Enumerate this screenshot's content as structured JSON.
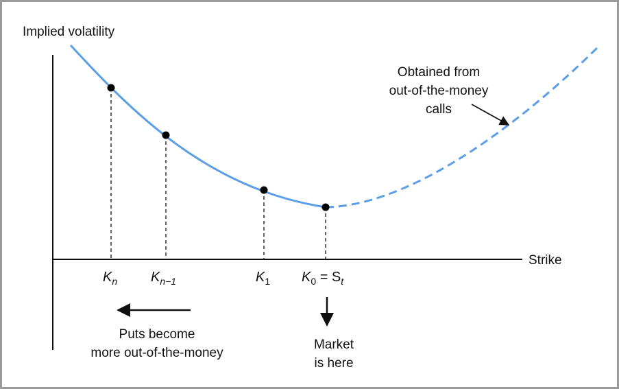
{
  "diagram": {
    "y_axis_label": "Implied volatility",
    "x_axis_label": "Strike",
    "strikes": [
      {
        "main": "K",
        "sub": "n",
        "suffix": ""
      },
      {
        "main": "K",
        "sub": "n−1",
        "suffix": ""
      },
      {
        "main": "K",
        "sub": "1",
        "suffix": ""
      },
      {
        "main": "K",
        "sub": "0",
        "suffix": " = S",
        "suffix_sub": "t"
      }
    ],
    "calls_annotation": [
      "Obtained from",
      "out-of-the-money",
      "calls"
    ],
    "puts_annotation": [
      "Puts become",
      "more out-of-the-money"
    ],
    "market_annotation": [
      "Market",
      "is here"
    ],
    "colors": {
      "curve": "#5b9ee6",
      "axis": "#111111",
      "frame": "#9a9a9a",
      "point": "#000000"
    }
  }
}
